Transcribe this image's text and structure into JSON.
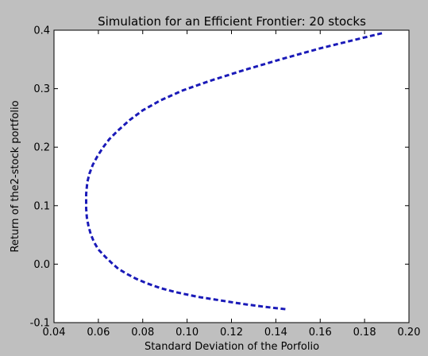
{
  "chart_data": {
    "type": "line",
    "title": "Simulation for an Efficient Frontier: 20 stocks",
    "xlabel": "Standard Deviation of the Porfolio",
    "ylabel": "Return of the2-stock portfolio",
    "xlim": [
      0.04,
      0.2
    ],
    "ylim": [
      -0.1,
      0.4
    ],
    "xticks": [
      "0.04",
      "0.06",
      "0.08",
      "0.10",
      "0.12",
      "0.14",
      "0.16",
      "0.18",
      "0.20"
    ],
    "yticks": [
      "-0.1",
      "0.0",
      "0.1",
      "0.2",
      "0.3",
      "0.4"
    ],
    "grid": false,
    "line_color": "#1a1ab8",
    "line_style": "dashed",
    "series": [
      {
        "x": [
          0.1443,
          0.135,
          0.125,
          0.115,
          0.105,
          0.095,
          0.088,
          0.082,
          0.077,
          0.073,
          0.069,
          0.066,
          0.063,
          0.06,
          0.058,
          0.0565,
          0.0555,
          0.0548,
          0.0545,
          0.0545,
          0.055,
          0.056,
          0.0575,
          0.0595,
          0.062,
          0.065,
          0.069,
          0.074,
          0.08,
          0.088,
          0.098,
          0.11,
          0.125,
          0.142,
          0.16,
          0.175,
          0.188
        ],
        "y": [
          -0.077,
          -0.073,
          -0.068,
          -0.062,
          -0.056,
          -0.048,
          -0.041,
          -0.033,
          -0.025,
          -0.017,
          -0.008,
          0.002,
          0.013,
          0.025,
          0.038,
          0.052,
          0.066,
          0.08,
          0.095,
          0.12,
          0.14,
          0.155,
          0.17,
          0.184,
          0.199,
          0.214,
          0.229,
          0.246,
          0.263,
          0.28,
          0.297,
          0.313,
          0.331,
          0.35,
          0.369,
          0.383,
          0.395
        ]
      }
    ]
  }
}
